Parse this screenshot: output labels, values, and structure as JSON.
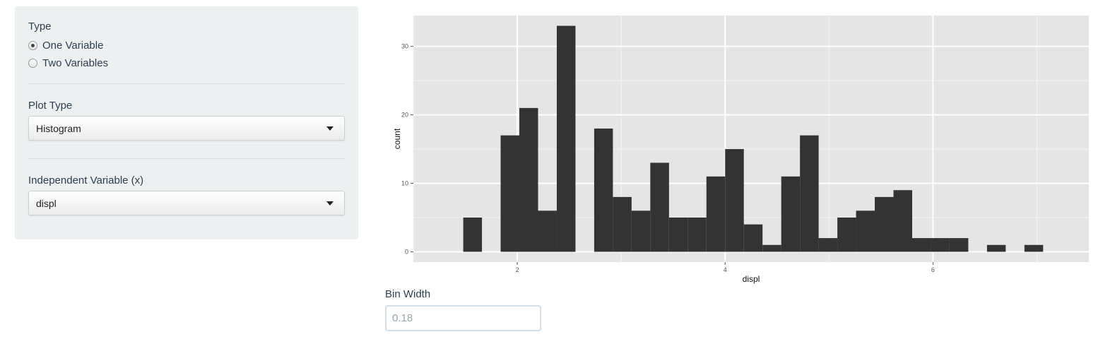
{
  "sidebar": {
    "type_label": "Type",
    "type_options": [
      {
        "label": "One Variable",
        "selected": true
      },
      {
        "label": "Two Variables",
        "selected": false
      }
    ],
    "plot_type_label": "Plot Type",
    "plot_type_value": "Histogram",
    "x_label": "Independent Variable (x)",
    "x_value": "displ"
  },
  "bin_width": {
    "label": "Bin Width",
    "value": "0.18"
  },
  "chart_data": {
    "type": "bar",
    "title": "",
    "xlabel": "displ",
    "ylabel": "count",
    "xlim": [
      1.0,
      7.5
    ],
    "ylim": [
      -1.5,
      34.5
    ],
    "xticks": [
      2,
      4,
      6
    ],
    "yticks": [
      0,
      10,
      20,
      30
    ],
    "grid": true,
    "bar_color": "#333333",
    "panel_color": "#e5e5e5",
    "bin_width": 0.18,
    "bins": [
      {
        "x0": 1.48,
        "x1": 1.66,
        "count": 5
      },
      {
        "x0": 1.84,
        "x1": 2.02,
        "count": 17
      },
      {
        "x0": 2.02,
        "x1": 2.2,
        "count": 21
      },
      {
        "x0": 2.2,
        "x1": 2.38,
        "count": 6
      },
      {
        "x0": 2.38,
        "x1": 2.56,
        "count": 33
      },
      {
        "x0": 2.74,
        "x1": 2.92,
        "count": 18
      },
      {
        "x0": 2.92,
        "x1": 3.1,
        "count": 8
      },
      {
        "x0": 3.1,
        "x1": 3.28,
        "count": 6
      },
      {
        "x0": 3.28,
        "x1": 3.46,
        "count": 13
      },
      {
        "x0": 3.46,
        "x1": 3.64,
        "count": 5
      },
      {
        "x0": 3.64,
        "x1": 3.82,
        "count": 5
      },
      {
        "x0": 3.82,
        "x1": 4.0,
        "count": 11
      },
      {
        "x0": 4.0,
        "x1": 4.18,
        "count": 15
      },
      {
        "x0": 4.18,
        "x1": 4.36,
        "count": 4
      },
      {
        "x0": 4.36,
        "x1": 4.54,
        "count": 1
      },
      {
        "x0": 4.54,
        "x1": 4.72,
        "count": 11
      },
      {
        "x0": 4.72,
        "x1": 4.9,
        "count": 17
      },
      {
        "x0": 4.9,
        "x1": 5.08,
        "count": 2
      },
      {
        "x0": 5.08,
        "x1": 5.26,
        "count": 5
      },
      {
        "x0": 5.26,
        "x1": 5.44,
        "count": 6
      },
      {
        "x0": 5.44,
        "x1": 5.62,
        "count": 8
      },
      {
        "x0": 5.62,
        "x1": 5.8,
        "count": 9
      },
      {
        "x0": 5.8,
        "x1": 5.98,
        "count": 2
      },
      {
        "x0": 5.98,
        "x1": 6.16,
        "count": 2
      },
      {
        "x0": 6.16,
        "x1": 6.34,
        "count": 2
      },
      {
        "x0": 6.52,
        "x1": 6.7,
        "count": 1
      },
      {
        "x0": 6.88,
        "x1": 7.06,
        "count": 1
      }
    ]
  }
}
